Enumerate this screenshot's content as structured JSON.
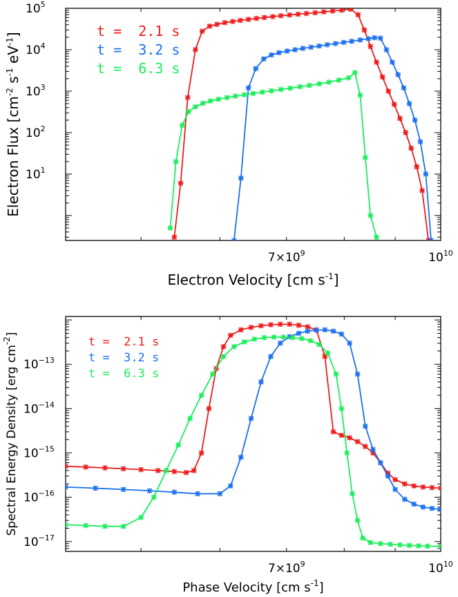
{
  "chart_data": [
    {
      "type": "line",
      "xlabel": "Electron Velocity [cm s",
      "xlabel_sup": "-1",
      "xlabel_end": "]",
      "ylabel": "Electron Flux [cm",
      "ylabel_sup1": "-2",
      "ylabel_mid": " s",
      "ylabel_sup2": "-1",
      "ylabel_mid2": " eV",
      "ylabel_sup3": "-1",
      "ylabel_end": "]",
      "xscale": "log",
      "yscale": "log",
      "xlim": [
        4200000000.0,
        10000000000.0
      ],
      "ylim": [
        0.25,
        100000
      ],
      "x_tick_labels": [
        {
          "value": 7000000000.0,
          "mant": "7×10",
          "exp": "9"
        },
        {
          "value": 10000000000.0,
          "mant": "10",
          "exp": "10"
        }
      ],
      "y_tick_labels": [
        {
          "value": 10,
          "mant": "10",
          "exp": "1"
        },
        {
          "value": 100,
          "mant": "10",
          "exp": "2"
        },
        {
          "value": 1000,
          "mant": "10",
          "exp": "3"
        },
        {
          "value": 10000,
          "mant": "10",
          "exp": "4"
        },
        {
          "value": 100000,
          "mant": "10",
          "exp": "5"
        }
      ],
      "legend": {
        "position": "top-left",
        "entries": [
          "t =  2.1 s",
          "t =  3.2 s",
          "t =  6.3 s"
        ]
      },
      "series": [
        {
          "name": "t =  2.1 s",
          "color": "#ee1a1a",
          "x": [
            5400000000.0,
            5480000000.0,
            5570000000.0,
            5670000000.0,
            5760000000.0,
            5860000000.0,
            5960000000.0,
            6070000000.0,
            6180000000.0,
            6290000000.0,
            6410000000.0,
            6530000000.0,
            6650000000.0,
            6780000000.0,
            6910000000.0,
            7050000000.0,
            7190000000.0,
            7330000000.0,
            7480000000.0,
            7630000000.0,
            7790000000.0,
            7950000000.0,
            8120000000.0,
            8260000000.0,
            8380000000.0,
            8500000000.0,
            8620000000.0,
            8740000000.0,
            8860000000.0,
            8980000000.0,
            9100000000.0,
            9220000000.0,
            9340000000.0,
            9460000000.0,
            9580000000.0,
            9720000000.0
          ],
          "y": [
            0.3,
            6,
            700,
            10000,
            28000,
            37000,
            41000,
            45000,
            48000,
            51000,
            54000,
            57000,
            60000,
            63000,
            66000,
            69000,
            72000,
            75000,
            78000,
            82000,
            86000,
            90000,
            95000,
            70000,
            30000,
            12000,
            5000,
            2200,
            1000,
            480,
            220,
            100,
            42,
            15,
            4,
            0.25
          ]
        },
        {
          "name": "t =  3.2 s",
          "color": "#1a6fee",
          "x": [
            6200000000.0,
            6300000000.0,
            6410000000.0,
            6520000000.0,
            6640000000.0,
            6760000000.0,
            6880000000.0,
            7010000000.0,
            7140000000.0,
            7270000000.0,
            7410000000.0,
            7550000000.0,
            7690000000.0,
            7840000000.0,
            7990000000.0,
            8140000000.0,
            8300000000.0,
            8460000000.0,
            8580000000.0,
            8700000000.0,
            8820000000.0,
            8940000000.0,
            9060000000.0,
            9180000000.0,
            9300000000.0,
            9420000000.0,
            9540000000.0,
            9660000000.0,
            9780000000.0
          ],
          "y": [
            0.25,
            8,
            1200,
            3500,
            6000,
            7500,
            8500,
            9300,
            10000,
            10800,
            11500,
            12300,
            13200,
            14100,
            15000,
            16000,
            17200,
            18500,
            19500,
            19000,
            10000,
            5000,
            2500,
            1200,
            500,
            200,
            60,
            10,
            0.25
          ]
        },
        {
          "name": "t =  6.3 s",
          "color": "#1aee5a",
          "x": [
            5350000000.0,
            5420000000.0,
            5500000000.0,
            5580000000.0,
            5670000000.0,
            5770000000.0,
            5870000000.0,
            5980000000.0,
            6100000000.0,
            6220000000.0,
            6350000000.0,
            6480000000.0,
            6620000000.0,
            6760000000.0,
            6910000000.0,
            7060000000.0,
            7220000000.0,
            7380000000.0,
            7550000000.0,
            7720000000.0,
            7900000000.0,
            8080000000.0,
            8200000000.0,
            8300000000.0,
            8400000000.0,
            8500000000.0,
            8620000000.0
          ],
          "y": [
            0.5,
            20,
            150,
            320,
            420,
            510,
            580,
            640,
            700,
            760,
            820,
            880,
            950,
            1020,
            1100,
            1180,
            1280,
            1380,
            1500,
            1650,
            1850,
            2100,
            2800,
            800,
            25,
            1,
            0.3
          ]
        }
      ]
    },
    {
      "type": "line",
      "xlabel": "Phase Velocity [cm s",
      "xlabel_sup": "-1",
      "xlabel_end": "]",
      "ylabel": "Spectral Energy Density [erg cm",
      "ylabel_sup": "-2",
      "ylabel_end": "]",
      "xscale": "log",
      "yscale": "log",
      "xlim": [
        4200000000.0,
        10000000000.0
      ],
      "ylim": [
        6e-18,
        1.2e-12
      ],
      "x_tick_labels": [
        {
          "value": 7000000000.0,
          "mant": "7×10",
          "exp": "9"
        },
        {
          "value": 10000000000.0,
          "mant": "10",
          "exp": "10"
        }
      ],
      "y_tick_labels": [
        {
          "value": 1e-17,
          "mant": "10",
          "exp": "−17"
        },
        {
          "value": 1e-16,
          "mant": "10",
          "exp": "−16"
        },
        {
          "value": 1e-15,
          "mant": "10",
          "exp": "−15"
        },
        {
          "value": 1e-14,
          "mant": "10",
          "exp": "−14"
        },
        {
          "value": 1e-13,
          "mant": "10",
          "exp": "−13"
        }
      ],
      "legend": {
        "position": "top-left",
        "entries": [
          "t =  2.1 s",
          "t =  3.2 s",
          "t =  6.3 s"
        ]
      },
      "series": [
        {
          "name": "t =  2.1 s",
          "color": "#ee1a1a",
          "x": [
            4200000000.0,
            4400000000.0,
            4600000000.0,
            4800000000.0,
            5000000000.0,
            5200000000.0,
            5400000000.0,
            5550000000.0,
            5650000000.0,
            5750000000.0,
            5850000000.0,
            5950000000.0,
            6050000000.0,
            6150000000.0,
            6300000000.0,
            6450000000.0,
            6600000000.0,
            6750000000.0,
            6900000000.0,
            7050000000.0,
            7200000000.0,
            7350000000.0,
            7500000000.0,
            7650000000.0,
            7800000000.0,
            7950000000.0,
            8100000000.0,
            8250000000.0,
            8400000000.0,
            8550000000.0,
            8700000000.0,
            8850000000.0,
            9000000000.0,
            9200000000.0,
            9400000000.0,
            9600000000.0,
            9800000000.0,
            10000000000.0
          ],
          "y": [
            5e-16,
            4.8e-16,
            4.6e-16,
            4.4e-16,
            4.2e-16,
            4e-16,
            3.8e-16,
            3.6e-16,
            4e-16,
            1e-15,
            1e-14,
            8e-14,
            2.5e-13,
            4.5e-13,
            6e-13,
            6.8e-13,
            7.4e-13,
            7.8e-13,
            8e-13,
            8e-13,
            7.6e-13,
            7e-13,
            6e-13,
            1.5e-13,
            3e-15,
            2.5e-15,
            2.2e-15,
            1.8e-15,
            1.4e-15,
            1e-15,
            6e-16,
            3.5e-16,
            2.5e-16,
            2e-16,
            1.8e-16,
            1.7e-16,
            1.65e-16,
            1.6e-16
          ]
        },
        {
          "name": "t =  3.2 s",
          "color": "#1a6fee",
          "x": [
            4200000000.0,
            4500000000.0,
            4800000000.0,
            5100000000.0,
            5400000000.0,
            5700000000.0,
            6000000000.0,
            6150000000.0,
            6300000000.0,
            6450000000.0,
            6600000000.0,
            6750000000.0,
            6900000000.0,
            7050000000.0,
            7200000000.0,
            7350000000.0,
            7500000000.0,
            7650000000.0,
            7800000000.0,
            7950000000.0,
            8100000000.0,
            8250000000.0,
            8400000000.0,
            8550000000.0,
            8700000000.0,
            8850000000.0,
            9000000000.0,
            9200000000.0,
            9400000000.0,
            9600000000.0,
            9800000000.0,
            10000000000.0
          ],
          "y": [
            1.7e-16,
            1.6e-16,
            1.5e-16,
            1.4e-16,
            1.3e-16,
            1.2e-16,
            1.2e-16,
            1.8e-16,
            8e-16,
            6e-15,
            4e-14,
            1.5e-13,
            3e-13,
            4.2e-13,
            5e-13,
            5.6e-13,
            5.9e-13,
            6e-13,
            5.6e-13,
            4.8e-13,
            3e-13,
            6e-14,
            4e-15,
            1.2e-15,
            6e-16,
            3e-16,
            1.5e-16,
            9e-17,
            7e-17,
            6e-17,
            5.6e-17,
            5.3e-17
          ]
        },
        {
          "name": "t =  6.3 s",
          "color": "#1aee5a",
          "x": [
            4200000000.0,
            4400000000.0,
            4600000000.0,
            4800000000.0,
            5000000000.0,
            5150000000.0,
            5300000000.0,
            5450000000.0,
            5600000000.0,
            5750000000.0,
            5900000000.0,
            6050000000.0,
            6200000000.0,
            6350000000.0,
            6500000000.0,
            6650000000.0,
            6800000000.0,
            6950000000.0,
            7100000000.0,
            7250000000.0,
            7400000000.0,
            7550000000.0,
            7700000000.0,
            7850000000.0,
            7950000000.0,
            8050000000.0,
            8150000000.0,
            8250000000.0,
            8350000000.0,
            8500000000.0,
            8700000000.0,
            8900000000.0,
            9100000000.0,
            9300000000.0,
            9500000000.0,
            9700000000.0,
            10000000000.0
          ],
          "y": [
            2.4e-17,
            2.3e-17,
            2.2e-17,
            2.2e-17,
            3.5e-17,
            1e-16,
            4e-16,
            1.5e-15,
            6e-15,
            2e-14,
            6e-14,
            1.5e-13,
            2.5e-13,
            3.2e-13,
            3.7e-13,
            4e-13,
            4.1e-13,
            4.1e-13,
            4e-13,
            3.8e-13,
            3.4e-13,
            2.8e-13,
            1.8e-13,
            6e-14,
            1e-14,
            1e-15,
            1.2e-16,
            3e-17,
            1.2e-17,
            9.5e-18,
            9e-18,
            8.7e-18,
            8.4e-18,
            8.2e-18,
            8e-18,
            7.9e-18,
            7.8e-18
          ]
        }
      ]
    }
  ]
}
